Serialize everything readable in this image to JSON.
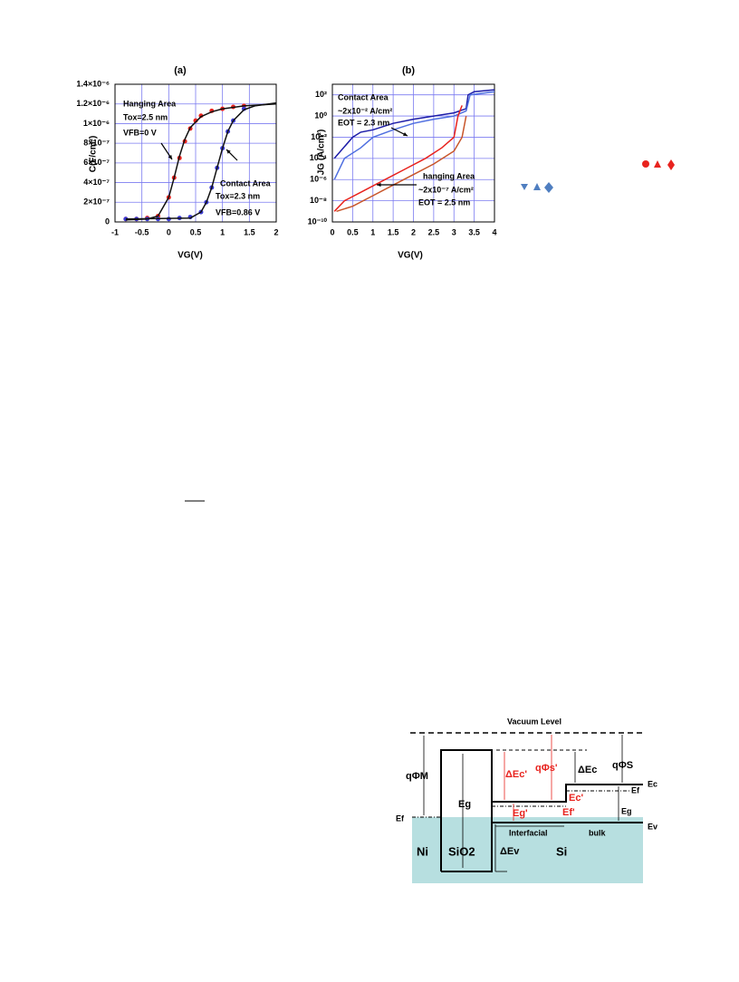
{
  "chart_data": [
    {
      "type": "scatter-line",
      "title": "(a)",
      "x_label": "VG(V)",
      "y_label": "C(F/cm²)",
      "xlim": [
        -1,
        2
      ],
      "xticks": [
        -1,
        -0.5,
        0,
        0.5,
        1,
        1.5,
        2
      ],
      "ylim": [
        0,
        1.4e-06
      ],
      "yticks": [
        {
          "value": 0,
          "label": "0"
        },
        {
          "value": 2e-07,
          "label": "2×10⁻⁷"
        },
        {
          "value": 4e-07,
          "label": "4×10⁻⁷"
        },
        {
          "value": 6e-07,
          "label": "6×10⁻⁷"
        },
        {
          "value": 8e-07,
          "label": "8×10⁻⁷"
        },
        {
          "value": 1e-06,
          "label": "1×10⁻⁶"
        },
        {
          "value": 1.2e-06,
          "label": "1.2×10⁻⁶"
        },
        {
          "value": 1.4e-06,
          "label": "1.4×10⁻⁶"
        }
      ],
      "grid": true,
      "log_y": false,
      "series": [
        {
          "color": "#e8231e",
          "style": "markers",
          "x": [
            -0.8,
            -0.6,
            -0.4,
            -0.2,
            0,
            0.1,
            0.2,
            0.3,
            0.4,
            0.5,
            0.6,
            0.8,
            1.0,
            1.2,
            1.4
          ],
          "values": [
            3e-08,
            3e-08,
            4e-08,
            6e-08,
            2.5e-07,
            4.5e-07,
            6.5e-07,
            8.2e-07,
            9.5e-07,
            1.03e-06,
            1.08e-06,
            1.13e-06,
            1.15e-06,
            1.17e-06,
            1.18e-06
          ]
        },
        {
          "color": "#3b3bd6",
          "style": "markers",
          "x": [
            -0.8,
            -0.6,
            -0.4,
            -0.2,
            0,
            0.2,
            0.4,
            0.6,
            0.7,
            0.8,
            0.9,
            1.0,
            1.1,
            1.2,
            1.4
          ],
          "values": [
            3e-08,
            3e-08,
            3e-08,
            3e-08,
            3e-08,
            4e-08,
            5e-08,
            1e-07,
            2e-07,
            3.5e-07,
            5.5e-07,
            7.5e-07,
            9.2e-07,
            1.03e-06,
            1.15e-06
          ]
        },
        {
          "color": "#111111",
          "style": "line",
          "x": [
            -0.8,
            -0.4,
            -0.2,
            0,
            0.1,
            0.2,
            0.3,
            0.4,
            0.6,
            0.8,
            1.0,
            1.4,
            2.0
          ],
          "values": [
            2e-08,
            3e-08,
            6e-08,
            2.5e-07,
            4.5e-07,
            6.7e-07,
            8.4e-07,
            9.6e-07,
            1.07e-06,
            1.12e-06,
            1.15e-06,
            1.18e-06,
            1.2e-06
          ]
        },
        {
          "color": "#111111",
          "style": "line",
          "x": [
            -0.8,
            0.4,
            0.6,
            0.7,
            0.8,
            0.9,
            1.0,
            1.1,
            1.2,
            1.4,
            1.6,
            2.0
          ],
          "values": [
            3e-08,
            4e-08,
            1e-07,
            2e-07,
            3.5e-07,
            5.5e-07,
            7.5e-07,
            9.2e-07,
            1.03e-06,
            1.14e-06,
            1.18e-06,
            1.21e-06
          ]
        }
      ],
      "annotations": [
        "Hanging Area",
        "Tox=2.5 nm",
        "VFB=0 V",
        "Contact Area",
        "Tox=2.3 nm",
        "VFB=0.86 V"
      ]
    },
    {
      "type": "line",
      "title": "(b)",
      "x_label": "VG(V)",
      "y_label": "JG (A/cm²)",
      "xlim": [
        0,
        4
      ],
      "xticks": [
        0,
        0.5,
        1,
        1.5,
        2,
        2.5,
        3,
        3.5,
        4
      ],
      "ylim": [
        1e-10,
        1000
      ],
      "yticks": [
        {
          "value": 1e-10,
          "label": "10⁻¹⁰"
        },
        {
          "value": 1e-08,
          "label": "10⁻⁸"
        },
        {
          "value": 1e-06,
          "label": "10⁻⁶"
        },
        {
          "value": 0.0001,
          "label": "10⁻⁴"
        },
        {
          "value": 0.01,
          "label": "10⁻²"
        },
        {
          "value": 1,
          "label": "10⁰"
        },
        {
          "value": 100,
          "label": "10²"
        }
      ],
      "grid": true,
      "log_y": true,
      "series": [
        {
          "color": "#1c1ca8",
          "style": "line",
          "x": [
            0.05,
            0.5,
            0.7,
            1,
            1.5,
            2,
            2.5,
            3,
            3.3,
            3.35,
            3.5,
            4
          ],
          "values": [
            0.0001,
            0.01,
            0.03,
            0.05,
            0.2,
            0.5,
            1,
            2,
            5,
            100,
            200,
            300
          ]
        },
        {
          "color": "#4f6fe0",
          "style": "line",
          "x": [
            0.05,
            0.3,
            0.7,
            1,
            1.5,
            2,
            2.5,
            3,
            3.3,
            3.4,
            4
          ],
          "values": [
            1e-06,
            0.0001,
            0.001,
            0.01,
            0.05,
            0.2,
            0.5,
            1,
            3,
            100,
            200
          ]
        },
        {
          "color": "#e8231e",
          "style": "line",
          "x": [
            0.05,
            0.3,
            0.8,
            1.3,
            1.8,
            2.3,
            2.7,
            3,
            3.1,
            3.2
          ],
          "values": [
            1e-09,
            1e-08,
            1e-07,
            1e-06,
            1e-05,
            0.0001,
            0.001,
            0.01,
            1,
            10
          ]
        },
        {
          "color": "#c8552a",
          "style": "line",
          "x": [
            0.1,
            0.5,
            1,
            1.5,
            2,
            2.5,
            3,
            3.2,
            3.3
          ],
          "values": [
            1e-09,
            3e-09,
            3e-08,
            3e-07,
            3e-06,
            3e-05,
            0.0005,
            0.01,
            1
          ]
        }
      ],
      "annotations": [
        "Contact Area",
        "~2x10⁻² A/cm²",
        "EOT = 2.3 nm",
        "hanging Area",
        "~2x10⁻⁷ A/cm²",
        "EOT = 2.5 nm"
      ]
    }
  ],
  "diagram": {
    "labels": [
      "Vacuum Level",
      "qΦM",
      "Eg",
      "qΦs'",
      "ΔEc'",
      "ΔEc",
      "qΦS",
      "Ec",
      "Ef",
      "Eg",
      "Ev",
      "Ef",
      "Ni",
      "SiO2",
      "Interfacial",
      "bulk",
      "Si",
      "ΔEv",
      "Eg'",
      "Ec'",
      "Ef'"
    ]
  }
}
